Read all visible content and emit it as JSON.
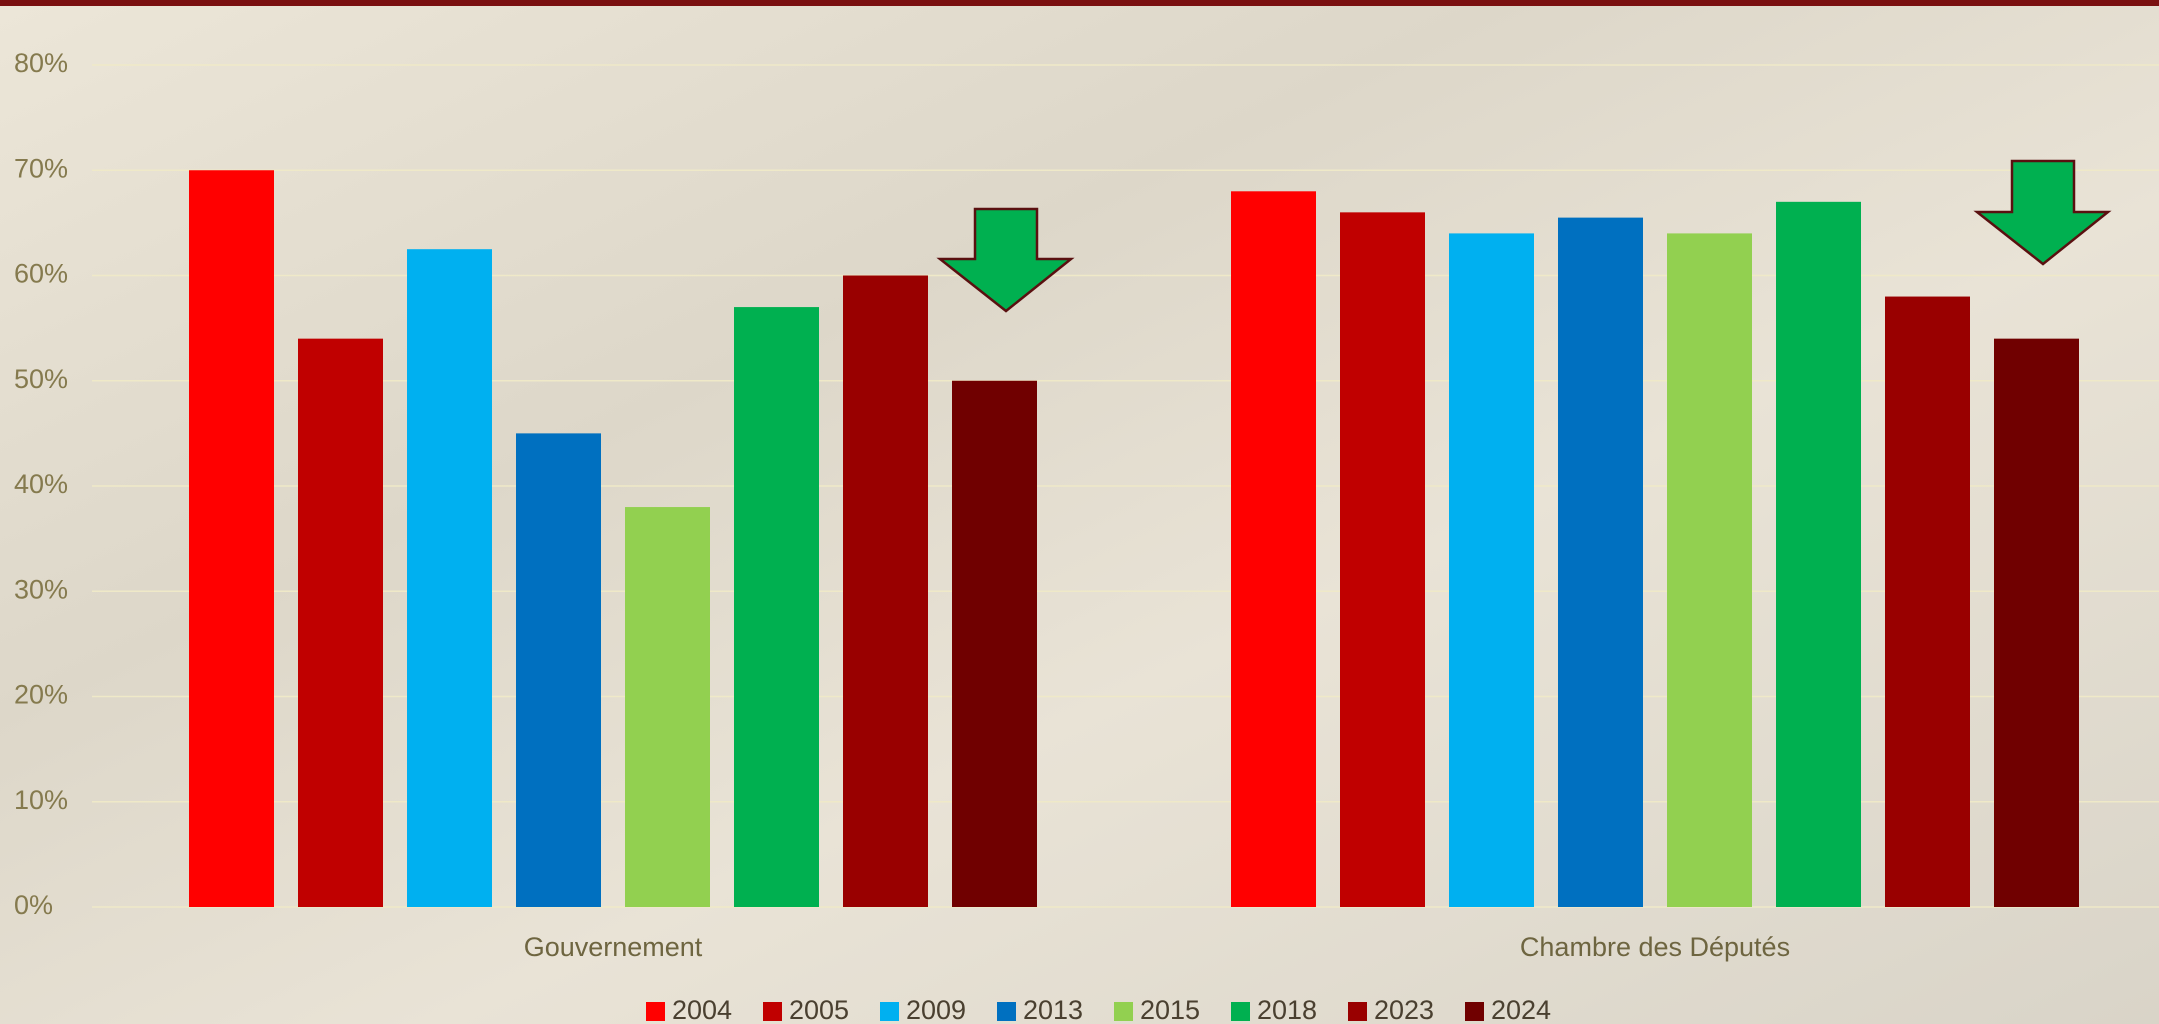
{
  "chart_data": {
    "type": "bar",
    "categories": [
      "Gouvernement",
      "Chambre des Députés"
    ],
    "series": [
      {
        "name": "2004",
        "color": "#ff0000",
        "values": [
          70,
          68
        ]
      },
      {
        "name": "2005",
        "color": "#c00000",
        "values": [
          54,
          66
        ]
      },
      {
        "name": "2009",
        "color": "#00b0f0",
        "values": [
          62.5,
          64
        ]
      },
      {
        "name": "2013",
        "color": "#0070c0",
        "values": [
          45,
          65.5
        ]
      },
      {
        "name": "2015",
        "color": "#92d050",
        "values": [
          38,
          64
        ]
      },
      {
        "name": "2018",
        "color": "#00b050",
        "values": [
          57,
          67
        ]
      },
      {
        "name": "2023",
        "color": "#990000",
        "values": [
          60,
          58
        ]
      },
      {
        "name": "2024",
        "color": "#700000",
        "values": [
          50,
          54
        ]
      }
    ],
    "ylim": [
      0,
      80
    ],
    "yticks": [
      {
        "value": 0,
        "label": "0%"
      },
      {
        "value": 10,
        "label": "10%"
      },
      {
        "value": 20,
        "label": "20%"
      },
      {
        "value": 30,
        "label": "30%"
      },
      {
        "value": 40,
        "label": "40%"
      },
      {
        "value": 50,
        "label": "50%"
      },
      {
        "value": 60,
        "label": "60%"
      },
      {
        "value": 70,
        "label": "70%"
      },
      {
        "value": 80,
        "label": "80%"
      }
    ],
    "grid": true
  }
}
